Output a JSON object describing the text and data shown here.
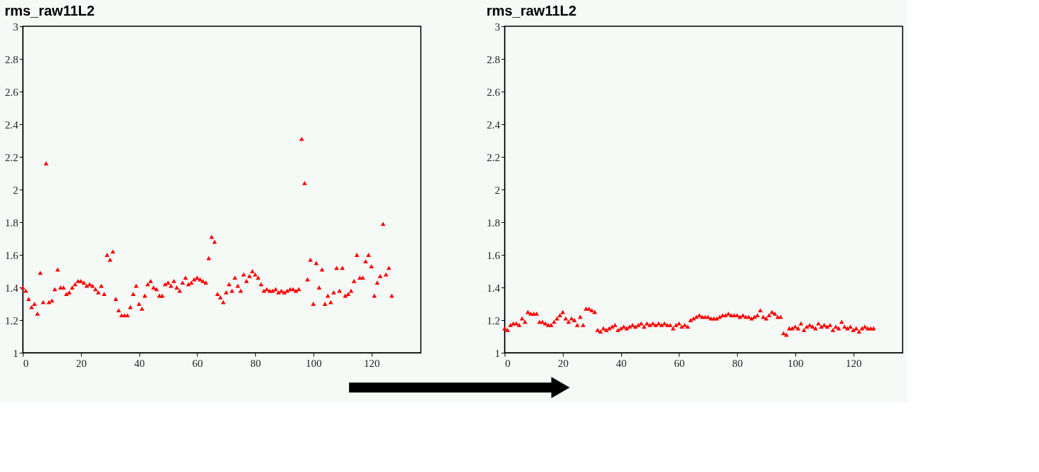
{
  "chart_data": [
    {
      "type": "scatter",
      "title": "rms_raw11L2",
      "marker": "triangle",
      "grid": false,
      "xlim": [
        0,
        137
      ],
      "ylim": [
        1,
        3
      ],
      "xticks": [
        0,
        20,
        40,
        60,
        80,
        100,
        120
      ],
      "yticks": [
        1,
        1.2,
        1.4,
        1.6,
        1.8,
        2,
        2.2,
        2.4,
        2.6,
        2.8,
        3
      ],
      "series": [
        {
          "color": "#ff0000",
          "x": [
            0,
            1,
            2,
            3,
            4,
            5,
            6,
            7,
            8,
            9,
            10,
            11,
            12,
            13,
            14,
            15,
            16,
            17,
            18,
            19,
            20,
            21,
            22,
            23,
            24,
            25,
            26,
            27,
            28,
            29,
            30,
            31,
            32,
            33,
            34,
            35,
            36,
            37,
            38,
            39,
            40,
            41,
            42,
            43,
            44,
            45,
            46,
            47,
            48,
            49,
            50,
            51,
            52,
            53,
            54,
            55,
            56,
            57,
            58,
            59,
            60,
            61,
            62,
            63,
            64,
            65,
            66,
            67,
            68,
            69,
            70,
            71,
            72,
            73,
            74,
            75,
            76,
            77,
            78,
            79,
            80,
            81,
            82,
            83,
            84,
            85,
            86,
            87,
            88,
            89,
            90,
            91,
            92,
            93,
            94,
            95,
            96,
            97,
            98,
            99,
            100,
            101,
            102,
            103,
            104,
            105,
            106,
            107,
            108,
            109,
            110,
            111,
            112,
            113,
            114,
            115,
            116,
            117,
            118,
            119,
            120,
            121,
            122,
            123,
            124,
            125,
            126,
            127
          ],
          "values": [
            1.4,
            1.38,
            1.33,
            1.28,
            1.3,
            1.24,
            1.49,
            1.31,
            2.16,
            1.31,
            1.32,
            1.39,
            1.51,
            1.4,
            1.4,
            1.36,
            1.37,
            1.4,
            1.42,
            1.44,
            1.44,
            1.43,
            1.41,
            1.42,
            1.41,
            1.39,
            1.37,
            1.41,
            1.36,
            1.6,
            1.57,
            1.62,
            1.33,
            1.26,
            1.23,
            1.23,
            1.23,
            1.28,
            1.36,
            1.41,
            1.3,
            1.27,
            1.35,
            1.42,
            1.44,
            1.4,
            1.39,
            1.35,
            1.35,
            1.42,
            1.43,
            1.41,
            1.44,
            1.4,
            1.38,
            1.43,
            1.46,
            1.42,
            1.43,
            1.45,
            1.46,
            1.45,
            1.44,
            1.43,
            1.58,
            1.71,
            1.68,
            1.36,
            1.34,
            1.31,
            1.37,
            1.42,
            1.38,
            1.46,
            1.41,
            1.38,
            1.48,
            1.44,
            1.47,
            1.5,
            1.48,
            1.46,
            1.42,
            1.38,
            1.39,
            1.38,
            1.38,
            1.39,
            1.37,
            1.38,
            1.37,
            1.38,
            1.39,
            1.39,
            1.38,
            1.39,
            2.31,
            2.04,
            1.45,
            1.57,
            1.3,
            1.55,
            1.4,
            1.51,
            1.3,
            1.35,
            1.31,
            1.37,
            1.52,
            1.38,
            1.52,
            1.35,
            1.36,
            1.38,
            1.44,
            1.6,
            1.46,
            1.46,
            1.56,
            1.6,
            1.53,
            1.35,
            1.43,
            1.47,
            1.79,
            1.48,
            1.52,
            1.35
          ]
        }
      ]
    },
    {
      "type": "scatter",
      "title": "rms_raw11L2",
      "marker": "triangle",
      "grid": false,
      "xlim": [
        0,
        137
      ],
      "ylim": [
        1,
        3
      ],
      "xticks": [
        0,
        20,
        40,
        60,
        80,
        100,
        120
      ],
      "yticks": [
        1,
        1.2,
        1.4,
        1.6,
        1.8,
        2,
        2.2,
        2.4,
        2.6,
        2.8,
        3
      ],
      "series": [
        {
          "color": "#ff0000",
          "x": [
            0,
            1,
            2,
            3,
            4,
            5,
            6,
            7,
            8,
            9,
            10,
            11,
            12,
            13,
            14,
            15,
            16,
            17,
            18,
            19,
            20,
            21,
            22,
            23,
            24,
            25,
            26,
            27,
            28,
            29,
            30,
            31,
            32,
            33,
            34,
            35,
            36,
            37,
            38,
            39,
            40,
            41,
            42,
            43,
            44,
            45,
            46,
            47,
            48,
            49,
            50,
            51,
            52,
            53,
            54,
            55,
            56,
            57,
            58,
            59,
            60,
            61,
            62,
            63,
            64,
            65,
            66,
            67,
            68,
            69,
            70,
            71,
            72,
            73,
            74,
            75,
            76,
            77,
            78,
            79,
            80,
            81,
            82,
            83,
            84,
            85,
            86,
            87,
            88,
            89,
            90,
            91,
            92,
            93,
            94,
            95,
            96,
            97,
            98,
            99,
            100,
            101,
            102,
            103,
            104,
            105,
            106,
            107,
            108,
            109,
            110,
            111,
            112,
            113,
            114,
            115,
            116,
            117,
            118,
            119,
            120,
            121,
            122,
            123,
            124,
            125,
            126,
            127
          ],
          "values": [
            1.15,
            1.14,
            1.17,
            1.18,
            1.18,
            1.17,
            1.21,
            1.19,
            1.25,
            1.24,
            1.24,
            1.24,
            1.19,
            1.19,
            1.18,
            1.17,
            1.17,
            1.19,
            1.21,
            1.23,
            1.25,
            1.21,
            1.19,
            1.21,
            1.2,
            1.17,
            1.22,
            1.17,
            1.27,
            1.27,
            1.26,
            1.25,
            1.14,
            1.13,
            1.15,
            1.14,
            1.15,
            1.16,
            1.17,
            1.14,
            1.15,
            1.16,
            1.15,
            1.16,
            1.17,
            1.16,
            1.17,
            1.18,
            1.16,
            1.18,
            1.17,
            1.18,
            1.17,
            1.18,
            1.17,
            1.18,
            1.17,
            1.17,
            1.15,
            1.17,
            1.18,
            1.16,
            1.17,
            1.16,
            1.2,
            1.21,
            1.22,
            1.23,
            1.22,
            1.22,
            1.22,
            1.21,
            1.21,
            1.21,
            1.22,
            1.23,
            1.23,
            1.24,
            1.23,
            1.23,
            1.23,
            1.22,
            1.23,
            1.22,
            1.22,
            1.21,
            1.22,
            1.23,
            1.26,
            1.22,
            1.21,
            1.23,
            1.25,
            1.24,
            1.22,
            1.22,
            1.12,
            1.11,
            1.15,
            1.15,
            1.16,
            1.15,
            1.18,
            1.14,
            1.16,
            1.17,
            1.16,
            1.15,
            1.18,
            1.16,
            1.17,
            1.16,
            1.17,
            1.14,
            1.16,
            1.15,
            1.19,
            1.16,
            1.15,
            1.16,
            1.14,
            1.15,
            1.13,
            1.15,
            1.16,
            1.15,
            1.15,
            1.15
          ]
        }
      ]
    }
  ]
}
